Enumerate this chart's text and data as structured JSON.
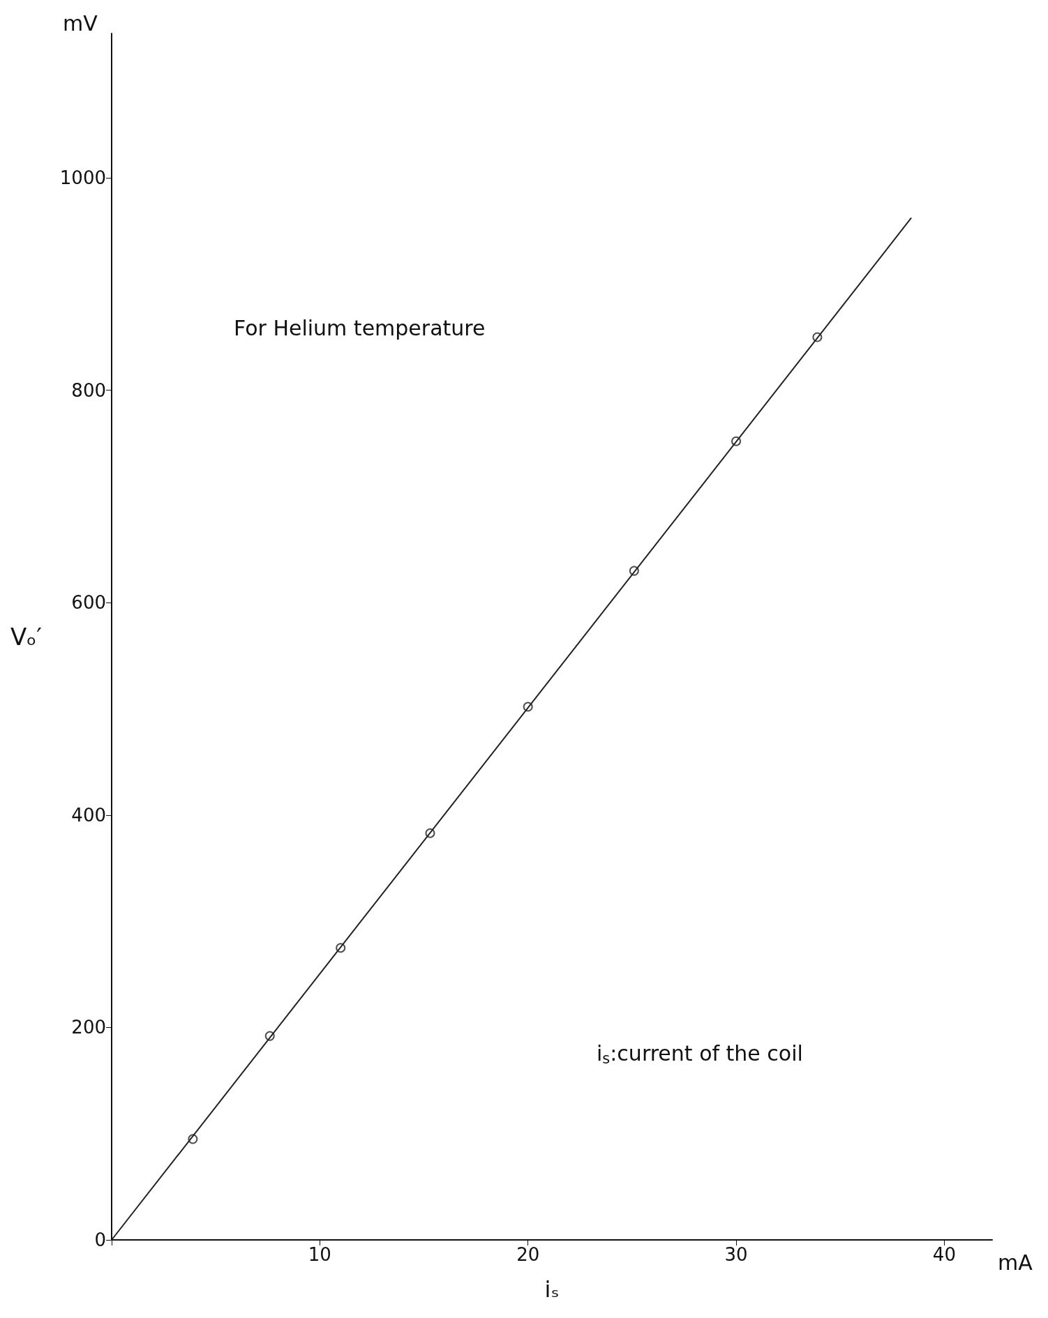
{
  "chart_data": {
    "type": "scatter",
    "xlabel": "iₛ",
    "ylabel": "Vₒ′",
    "annotations": [
      "mV",
      "mA",
      "For Helium temperature",
      "i$_{s}$:current of the coil"
    ],
    "series": [
      {
        "type": "scatter",
        "x": [
          3.9,
          7.6,
          11.0,
          15.3,
          20.0,
          25.1,
          30.0,
          33.9
        ],
        "values": [
          95,
          192,
          275,
          383,
          502,
          630,
          752,
          850
        ],
        "color": "#222222",
        "marker": "circle"
      },
      {
        "type": "line",
        "x": [
          0,
          38.4
        ],
        "values": [
          0,
          962
        ],
        "color": "#222222",
        "marker": "none",
        "line_style": "solid"
      }
    ],
    "xlim": [
      0,
      42.3
    ],
    "xticks": [
      {
        "value": 0,
        "label": null
      },
      10,
      20,
      30,
      40
    ],
    "ylim": [
      0,
      1136
    ],
    "yticks": [
      0,
      200,
      400,
      600,
      800,
      1000
    ],
    "grid": false
  }
}
